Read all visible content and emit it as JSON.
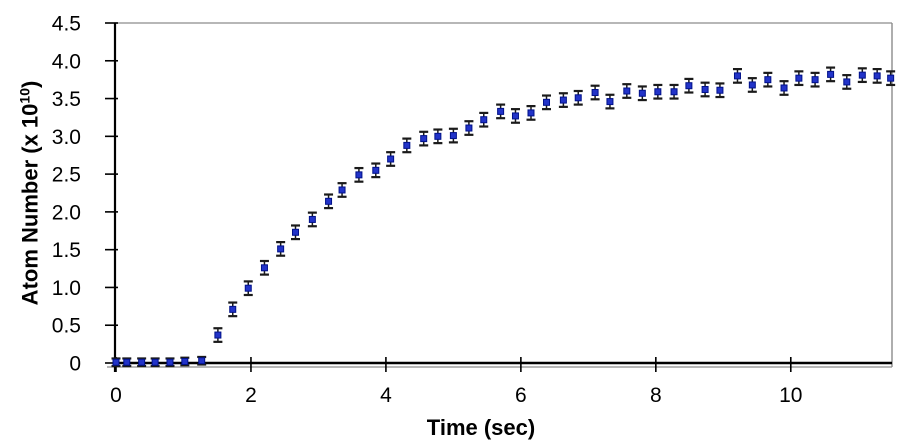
{
  "chart_data": {
    "type": "scatter",
    "title": "",
    "xlabel": "Time (sec)",
    "ylabel": "Atom Number (x 10^10)",
    "ylabel_parts": {
      "main": "Atom Number (x 10",
      "sup": "10",
      "end": ")"
    },
    "xlim": [
      0,
      11.5
    ],
    "ylim": [
      0,
      4.5
    ],
    "xticks": [
      0,
      2,
      4,
      6,
      8,
      10
    ],
    "ytick_values": [
      0,
      0.5,
      1.0,
      1.5,
      2.0,
      2.5,
      3.0,
      3.5,
      4.0,
      4.5
    ],
    "ytick_labels": [
      "0",
      "0.5",
      "1.0",
      "1.5",
      "2.0",
      "2.5",
      "3.0",
      "3.5",
      "4.0",
      "4.5"
    ],
    "grid": false,
    "legend": "none",
    "marker_shape": "square",
    "colors": {
      "marker": "#2233c8",
      "marker_border": "#001189",
      "errorbar": "#1a1a1a",
      "axis": "#000000",
      "frame": "#8c8c8c",
      "background": "#ffffff",
      "text": "#000000"
    },
    "series": [
      {
        "name": "atom-number-vs-time",
        "x": [
          0.0,
          0.16,
          0.38,
          0.58,
          0.8,
          1.02,
          1.27,
          1.51,
          1.73,
          1.96,
          2.2,
          2.44,
          2.66,
          2.91,
          3.15,
          3.35,
          3.6,
          3.85,
          4.07,
          4.31,
          4.56,
          4.77,
          5.0,
          5.23,
          5.45,
          5.7,
          5.92,
          6.15,
          6.38,
          6.63,
          6.85,
          7.1,
          7.32,
          7.57,
          7.8,
          8.03,
          8.27,
          8.49,
          8.73,
          8.95,
          9.21,
          9.43,
          9.66,
          9.9,
          10.12,
          10.36,
          10.59,
          10.83,
          11.06,
          11.28,
          11.48
        ],
        "y": [
          0.01,
          0.01,
          0.01,
          0.01,
          0.01,
          0.02,
          0.03,
          0.37,
          0.71,
          0.99,
          1.26,
          1.51,
          1.73,
          1.9,
          2.14,
          2.29,
          2.49,
          2.55,
          2.7,
          2.88,
          2.97,
          3.0,
          3.01,
          3.11,
          3.22,
          3.33,
          3.27,
          3.31,
          3.45,
          3.48,
          3.51,
          3.58,
          3.46,
          3.6,
          3.57,
          3.59,
          3.59,
          3.67,
          3.62,
          3.61,
          3.8,
          3.68,
          3.75,
          3.64,
          3.77,
          3.75,
          3.82,
          3.72,
          3.81,
          3.8,
          3.77
        ],
        "yerr": [
          0.05,
          0.05,
          0.05,
          0.05,
          0.05,
          0.05,
          0.05,
          0.09,
          0.09,
          0.09,
          0.09,
          0.09,
          0.09,
          0.09,
          0.09,
          0.09,
          0.09,
          0.09,
          0.09,
          0.09,
          0.09,
          0.09,
          0.09,
          0.09,
          0.09,
          0.09,
          0.09,
          0.09,
          0.09,
          0.09,
          0.09,
          0.09,
          0.09,
          0.09,
          0.09,
          0.09,
          0.09,
          0.09,
          0.09,
          0.09,
          0.09,
          0.09,
          0.09,
          0.09,
          0.09,
          0.09,
          0.09,
          0.09,
          0.09,
          0.09,
          0.09
        ]
      }
    ]
  }
}
